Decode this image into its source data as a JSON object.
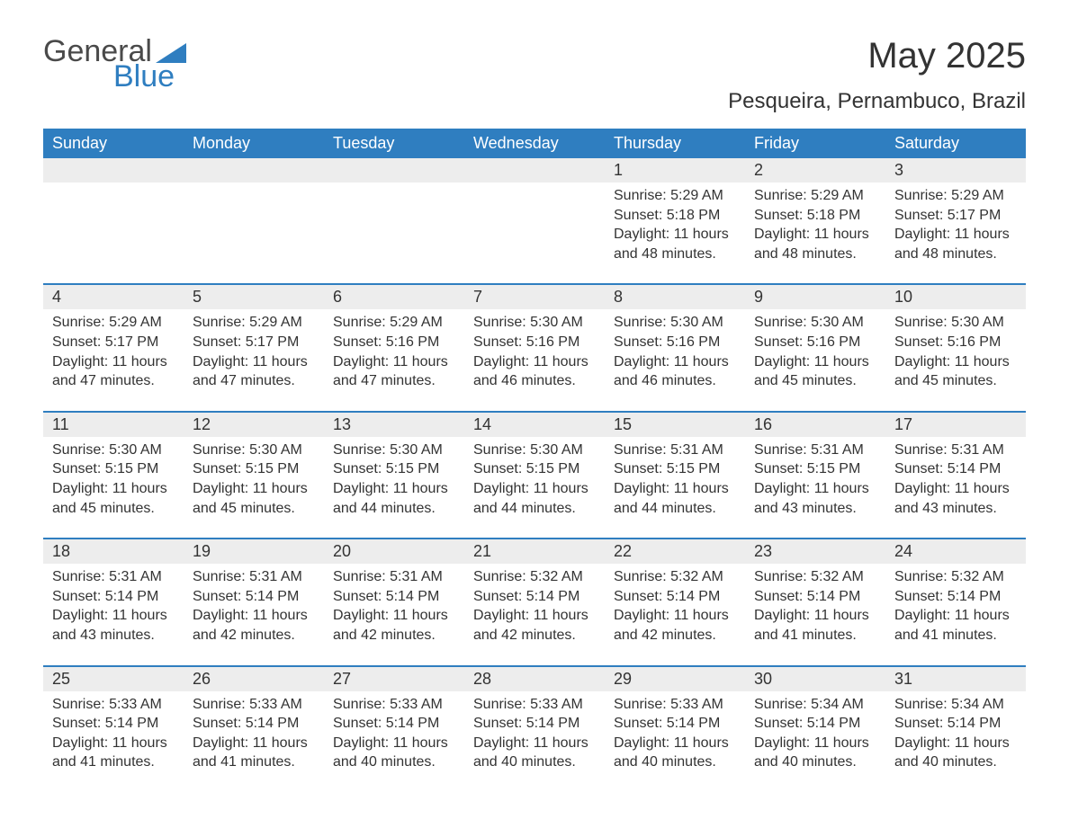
{
  "brand": {
    "word1": "General",
    "word2": "Blue",
    "accent_color": "#2f7ec0",
    "text_color": "#4a4a4a"
  },
  "title": "May 2025",
  "location": "Pesqueira, Pernambuco, Brazil",
  "colors": {
    "header_bg": "#2f7ec0",
    "header_text": "#ffffff",
    "row_divider": "#2f7ec0",
    "daynum_bg": "#ededed",
    "body_text": "#333333",
    "page_bg": "#ffffff"
  },
  "day_headers": [
    "Sunday",
    "Monday",
    "Tuesday",
    "Wednesday",
    "Thursday",
    "Friday",
    "Saturday"
  ],
  "weeks": [
    [
      null,
      null,
      null,
      null,
      {
        "n": "1",
        "sunrise": "Sunrise: 5:29 AM",
        "sunset": "Sunset: 5:18 PM",
        "daylight": "Daylight: 11 hours and 48 minutes."
      },
      {
        "n": "2",
        "sunrise": "Sunrise: 5:29 AM",
        "sunset": "Sunset: 5:18 PM",
        "daylight": "Daylight: 11 hours and 48 minutes."
      },
      {
        "n": "3",
        "sunrise": "Sunrise: 5:29 AM",
        "sunset": "Sunset: 5:17 PM",
        "daylight": "Daylight: 11 hours and 48 minutes."
      }
    ],
    [
      {
        "n": "4",
        "sunrise": "Sunrise: 5:29 AM",
        "sunset": "Sunset: 5:17 PM",
        "daylight": "Daylight: 11 hours and 47 minutes."
      },
      {
        "n": "5",
        "sunrise": "Sunrise: 5:29 AM",
        "sunset": "Sunset: 5:17 PM",
        "daylight": "Daylight: 11 hours and 47 minutes."
      },
      {
        "n": "6",
        "sunrise": "Sunrise: 5:29 AM",
        "sunset": "Sunset: 5:16 PM",
        "daylight": "Daylight: 11 hours and 47 minutes."
      },
      {
        "n": "7",
        "sunrise": "Sunrise: 5:30 AM",
        "sunset": "Sunset: 5:16 PM",
        "daylight": "Daylight: 11 hours and 46 minutes."
      },
      {
        "n": "8",
        "sunrise": "Sunrise: 5:30 AM",
        "sunset": "Sunset: 5:16 PM",
        "daylight": "Daylight: 11 hours and 46 minutes."
      },
      {
        "n": "9",
        "sunrise": "Sunrise: 5:30 AM",
        "sunset": "Sunset: 5:16 PM",
        "daylight": "Daylight: 11 hours and 45 minutes."
      },
      {
        "n": "10",
        "sunrise": "Sunrise: 5:30 AM",
        "sunset": "Sunset: 5:16 PM",
        "daylight": "Daylight: 11 hours and 45 minutes."
      }
    ],
    [
      {
        "n": "11",
        "sunrise": "Sunrise: 5:30 AM",
        "sunset": "Sunset: 5:15 PM",
        "daylight": "Daylight: 11 hours and 45 minutes."
      },
      {
        "n": "12",
        "sunrise": "Sunrise: 5:30 AM",
        "sunset": "Sunset: 5:15 PM",
        "daylight": "Daylight: 11 hours and 45 minutes."
      },
      {
        "n": "13",
        "sunrise": "Sunrise: 5:30 AM",
        "sunset": "Sunset: 5:15 PM",
        "daylight": "Daylight: 11 hours and 44 minutes."
      },
      {
        "n": "14",
        "sunrise": "Sunrise: 5:30 AM",
        "sunset": "Sunset: 5:15 PM",
        "daylight": "Daylight: 11 hours and 44 minutes."
      },
      {
        "n": "15",
        "sunrise": "Sunrise: 5:31 AM",
        "sunset": "Sunset: 5:15 PM",
        "daylight": "Daylight: 11 hours and 44 minutes."
      },
      {
        "n": "16",
        "sunrise": "Sunrise: 5:31 AM",
        "sunset": "Sunset: 5:15 PM",
        "daylight": "Daylight: 11 hours and 43 minutes."
      },
      {
        "n": "17",
        "sunrise": "Sunrise: 5:31 AM",
        "sunset": "Sunset: 5:14 PM",
        "daylight": "Daylight: 11 hours and 43 minutes."
      }
    ],
    [
      {
        "n": "18",
        "sunrise": "Sunrise: 5:31 AM",
        "sunset": "Sunset: 5:14 PM",
        "daylight": "Daylight: 11 hours and 43 minutes."
      },
      {
        "n": "19",
        "sunrise": "Sunrise: 5:31 AM",
        "sunset": "Sunset: 5:14 PM",
        "daylight": "Daylight: 11 hours and 42 minutes."
      },
      {
        "n": "20",
        "sunrise": "Sunrise: 5:31 AM",
        "sunset": "Sunset: 5:14 PM",
        "daylight": "Daylight: 11 hours and 42 minutes."
      },
      {
        "n": "21",
        "sunrise": "Sunrise: 5:32 AM",
        "sunset": "Sunset: 5:14 PM",
        "daylight": "Daylight: 11 hours and 42 minutes."
      },
      {
        "n": "22",
        "sunrise": "Sunrise: 5:32 AM",
        "sunset": "Sunset: 5:14 PM",
        "daylight": "Daylight: 11 hours and 42 minutes."
      },
      {
        "n": "23",
        "sunrise": "Sunrise: 5:32 AM",
        "sunset": "Sunset: 5:14 PM",
        "daylight": "Daylight: 11 hours and 41 minutes."
      },
      {
        "n": "24",
        "sunrise": "Sunrise: 5:32 AM",
        "sunset": "Sunset: 5:14 PM",
        "daylight": "Daylight: 11 hours and 41 minutes."
      }
    ],
    [
      {
        "n": "25",
        "sunrise": "Sunrise: 5:33 AM",
        "sunset": "Sunset: 5:14 PM",
        "daylight": "Daylight: 11 hours and 41 minutes."
      },
      {
        "n": "26",
        "sunrise": "Sunrise: 5:33 AM",
        "sunset": "Sunset: 5:14 PM",
        "daylight": "Daylight: 11 hours and 41 minutes."
      },
      {
        "n": "27",
        "sunrise": "Sunrise: 5:33 AM",
        "sunset": "Sunset: 5:14 PM",
        "daylight": "Daylight: 11 hours and 40 minutes."
      },
      {
        "n": "28",
        "sunrise": "Sunrise: 5:33 AM",
        "sunset": "Sunset: 5:14 PM",
        "daylight": "Daylight: 11 hours and 40 minutes."
      },
      {
        "n": "29",
        "sunrise": "Sunrise: 5:33 AM",
        "sunset": "Sunset: 5:14 PM",
        "daylight": "Daylight: 11 hours and 40 minutes."
      },
      {
        "n": "30",
        "sunrise": "Sunrise: 5:34 AM",
        "sunset": "Sunset: 5:14 PM",
        "daylight": "Daylight: 11 hours and 40 minutes."
      },
      {
        "n": "31",
        "sunrise": "Sunrise: 5:34 AM",
        "sunset": "Sunset: 5:14 PM",
        "daylight": "Daylight: 11 hours and 40 minutes."
      }
    ]
  ]
}
